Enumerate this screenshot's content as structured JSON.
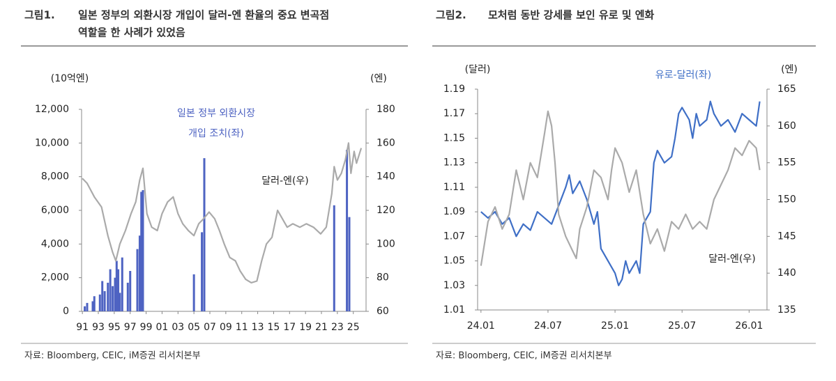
{
  "chart_data": [
    {
      "type": "combo",
      "label": "그림1.",
      "title": [
        "일본 정부의 외환시장 개입이 달러-엔 환율의 중요 변곡점",
        "역할을 한 사례가 있었음"
      ],
      "ylabel": "(10억엔)",
      "y2label": "(엔)",
      "source": "자료: Bloomberg, CEIC, iM증권 리서치본부",
      "xlim": [
        1990.9,
        2026.6
      ],
      "xticks": [
        {
          "value": 1991,
          "label": "91"
        },
        {
          "value": 1993,
          "label": "93"
        },
        {
          "value": 1995,
          "label": "95"
        },
        {
          "value": 1997,
          "label": "97"
        },
        {
          "value": 1999,
          "label": "99"
        },
        {
          "value": 2001,
          "label": "01"
        },
        {
          "value": 2003,
          "label": "03"
        },
        {
          "value": 2005,
          "label": "05"
        },
        {
          "value": 2007,
          "label": "07"
        },
        {
          "value": 2009,
          "label": "09"
        },
        {
          "value": 2011,
          "label": "11"
        },
        {
          "value": 2013,
          "label": "13"
        },
        {
          "value": 2015,
          "label": "15"
        },
        {
          "value": 2017,
          "label": "17"
        },
        {
          "value": 2019,
          "label": "19"
        },
        {
          "value": 2021,
          "label": "21"
        },
        {
          "value": 2023,
          "label": "23"
        },
        {
          "value": 2025,
          "label": "25"
        }
      ],
      "ylim": [
        0,
        12000
      ],
      "yticks": [
        0,
        {
          "value": 2000,
          "label": "2,000"
        },
        {
          "value": 4000,
          "label": "4,000"
        },
        {
          "value": 6000,
          "label": "6,000"
        },
        {
          "value": 8000,
          "label": "8,000"
        },
        {
          "value": 10000,
          "label": "10,000"
        },
        {
          "value": 12000,
          "label": "12,000"
        }
      ],
      "y2lim": [
        60,
        180
      ],
      "y2ticks": [
        60,
        80,
        100,
        120,
        140,
        160,
        180
      ],
      "series": [
        {
          "name": [
            "일본 정부 외환시장",
            "개입 조치(좌)"
          ],
          "type": "bar",
          "color": "#4e63c2",
          "x": [
            1991.3,
            1991.6,
            1992.3,
            1992.5,
            1993.2,
            1993.5,
            1993.8,
            1994.2,
            1994.5,
            1994.8,
            1995.1,
            1995.3,
            1995.5,
            1995.7,
            1996.0,
            1996.7,
            1997.0,
            1997.9,
            1998.2,
            1998.4,
            1998.6,
            2005.0,
            2006.0,
            2006.3,
            2022.6,
            2024.2,
            2024.5
          ],
          "values": [
            300,
            500,
            600,
            900,
            1000,
            1800,
            1200,
            1700,
            2500,
            1500,
            2000,
            3000,
            2500,
            1100,
            3200,
            1700,
            2400,
            3700,
            4500,
            7100,
            7200,
            2200,
            4700,
            9100,
            6300,
            9600,
            5600
          ]
        },
        {
          "name": [
            "달러-엔(우)"
          ],
          "type": "line",
          "axis": "y2",
          "color": "#aaaaaa",
          "x": [
            1991.0,
            1991.6,
            1992.5,
            1993.4,
            1994.2,
            1994.8,
            1995.2,
            1995.7,
            1996.4,
            1997.1,
            1997.7,
            1998.2,
            1998.6,
            1999.1,
            1999.7,
            2000.4,
            2001.0,
            2001.7,
            2002.4,
            2003.0,
            2003.6,
            2004.3,
            2005.0,
            2005.6,
            2006.2,
            2006.9,
            2007.6,
            2008.2,
            2008.8,
            2009.5,
            2010.2,
            2010.8,
            2011.5,
            2012.2,
            2012.9,
            2013.5,
            2014.1,
            2014.8,
            2015.5,
            2016.1,
            2016.7,
            2017.4,
            2018.3,
            2019.1,
            2020.0,
            2020.9,
            2021.6,
            2022.3,
            2022.6,
            2023.0,
            2023.5,
            2024.0,
            2024.4,
            2024.7,
            2025.1,
            2025.4,
            2026.0
          ],
          "values": [
            139,
            136,
            128,
            122,
            105,
            95,
            90,
            100,
            108,
            118,
            125,
            138,
            145,
            118,
            110,
            108,
            118,
            125,
            128,
            118,
            112,
            108,
            105,
            112,
            115,
            119,
            115,
            108,
            100,
            92,
            90,
            84,
            79,
            77,
            78,
            90,
            100,
            104,
            120,
            115,
            110,
            112,
            110,
            112,
            110,
            106,
            110,
            130,
            146,
            138,
            142,
            150,
            160,
            142,
            155,
            148,
            157
          ]
        }
      ]
    },
    {
      "type": "line",
      "label": "그림2.",
      "title": [
        "모처럼 동반 강세를 보인 유로 및 엔화"
      ],
      "ylabel": "(달러)",
      "y2label": "(엔)",
      "source": "자료: Bloomberg, CEIC, iM증권 리서치본부",
      "xlim": [
        -0.3,
        25.6
      ],
      "xticks": [
        {
          "value": 0,
          "label": "24.01"
        },
        {
          "value": 6,
          "label": "24.07"
        },
        {
          "value": 12,
          "label": "25.01"
        },
        {
          "value": 18,
          "label": "25.07"
        },
        {
          "value": 24,
          "label": "26.01"
        }
      ],
      "ylim": [
        1.01,
        1.19
      ],
      "yticks": [
        1.01,
        1.03,
        1.05,
        1.07,
        1.09,
        1.11,
        1.13,
        1.15,
        1.17,
        1.19
      ],
      "y2lim": [
        135,
        165
      ],
      "y2ticks": [
        135,
        140,
        145,
        150,
        155,
        160,
        165
      ],
      "series": [
        {
          "name": [
            "유로-달러(좌)"
          ],
          "type": "line",
          "color": "#3f6fc6",
          "x": [
            0,
            0.63,
            1.26,
            1.9,
            2.53,
            3.16,
            3.79,
            4.42,
            5.05,
            5.69,
            6.32,
            6.95,
            7.58,
            7.9,
            8.21,
            8.84,
            9.48,
            10.11,
            10.42,
            10.74,
            11.37,
            12.0,
            12.32,
            12.63,
            12.95,
            13.27,
            13.9,
            14.21,
            14.53,
            15.16,
            15.48,
            15.79,
            16.42,
            17.06,
            17.37,
            17.69,
            18.0,
            18.64,
            18.95,
            19.27,
            19.58,
            20.21,
            20.53,
            20.85,
            21.48,
            22.11,
            22.74,
            23.37,
            24.0,
            24.64,
            24.95
          ],
          "values": [
            1.09,
            1.085,
            1.09,
            1.08,
            1.085,
            1.07,
            1.08,
            1.075,
            1.09,
            1.085,
            1.08,
            1.095,
            1.11,
            1.12,
            1.105,
            1.115,
            1.1,
            1.08,
            1.09,
            1.06,
            1.05,
            1.04,
            1.03,
            1.035,
            1.05,
            1.04,
            1.05,
            1.04,
            1.08,
            1.09,
            1.13,
            1.14,
            1.13,
            1.135,
            1.15,
            1.17,
            1.175,
            1.165,
            1.15,
            1.17,
            1.16,
            1.165,
            1.18,
            1.17,
            1.16,
            1.165,
            1.155,
            1.17,
            1.165,
            1.16,
            1.18
          ]
        },
        {
          "name": [
            "달러-엔(우)"
          ],
          "type": "line",
          "axis": "y2",
          "color": "#aaaaaa",
          "x": [
            0,
            0.63,
            1.26,
            1.9,
            2.53,
            3.16,
            3.79,
            4.42,
            5.05,
            5.69,
            6.0,
            6.32,
            6.63,
            6.95,
            7.58,
            8.21,
            8.53,
            8.84,
            9.48,
            10.11,
            10.74,
            11.37,
            11.69,
            12.0,
            12.63,
            13.27,
            13.9,
            14.53,
            15.16,
            15.79,
            16.42,
            17.06,
            17.69,
            18.32,
            18.95,
            19.58,
            20.21,
            20.85,
            21.48,
            22.11,
            22.74,
            23.37,
            24.0,
            24.64,
            24.95
          ],
          "values": [
            141,
            147,
            149,
            146,
            148,
            154,
            150,
            155,
            153,
            159,
            162,
            160,
            155,
            148,
            145,
            143,
            142,
            146,
            149,
            154,
            153,
            150,
            154,
            157,
            155,
            151,
            154,
            148,
            144,
            146,
            143,
            147,
            146,
            148,
            146,
            147,
            146,
            150,
            152,
            154,
            157,
            156,
            158,
            157,
            154
          ]
        }
      ]
    }
  ]
}
